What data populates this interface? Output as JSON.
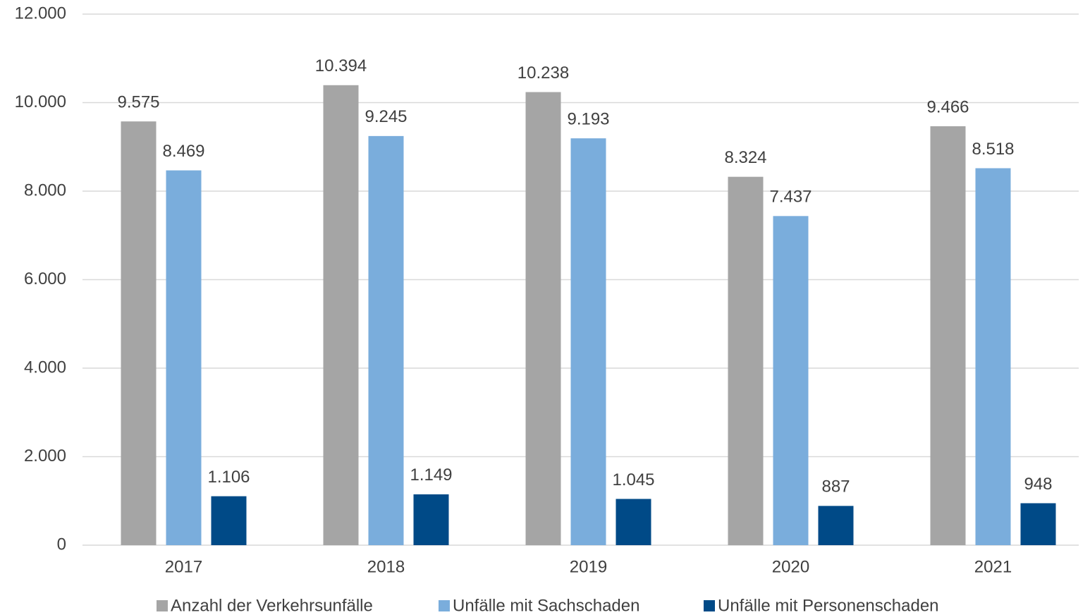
{
  "chart_data": {
    "type": "bar",
    "categories": [
      "2017",
      "2018",
      "2019",
      "2020",
      "2021"
    ],
    "series": [
      {
        "name": "Anzahl der Verkehrsunfälle",
        "color": "#a5a5a5",
        "values": [
          9575,
          10394,
          10238,
          8324,
          9466
        ],
        "value_labels": [
          "9.575",
          "10.394",
          "10.238",
          "8.324",
          "9.466"
        ]
      },
      {
        "name": "Unfälle mit Sachschaden",
        "color": "#7aaddc",
        "values": [
          8469,
          9245,
          9193,
          7437,
          8518
        ],
        "value_labels": [
          "8.469",
          "9.245",
          "9.193",
          "7.437",
          "8.518"
        ]
      },
      {
        "name": "Unfälle mit Personenschaden",
        "color": "#004a87",
        "values": [
          1106,
          1149,
          1045,
          887,
          948
        ],
        "value_labels": [
          "1.106",
          "1.149",
          "1.045",
          "887",
          "948"
        ]
      }
    ],
    "ylim": [
      0,
      12000
    ],
    "yticks": [
      0,
      {
        "value": 2000,
        "label": "2.000"
      },
      {
        "value": 4000,
        "label": "4.000"
      },
      {
        "value": 6000,
        "label": "6.000"
      },
      {
        "value": 8000,
        "label": "8.000"
      },
      {
        "value": 10000,
        "label": "10.000"
      },
      {
        "value": 12000,
        "label": "12.000"
      }
    ],
    "grid": true,
    "legend": "bottom"
  }
}
